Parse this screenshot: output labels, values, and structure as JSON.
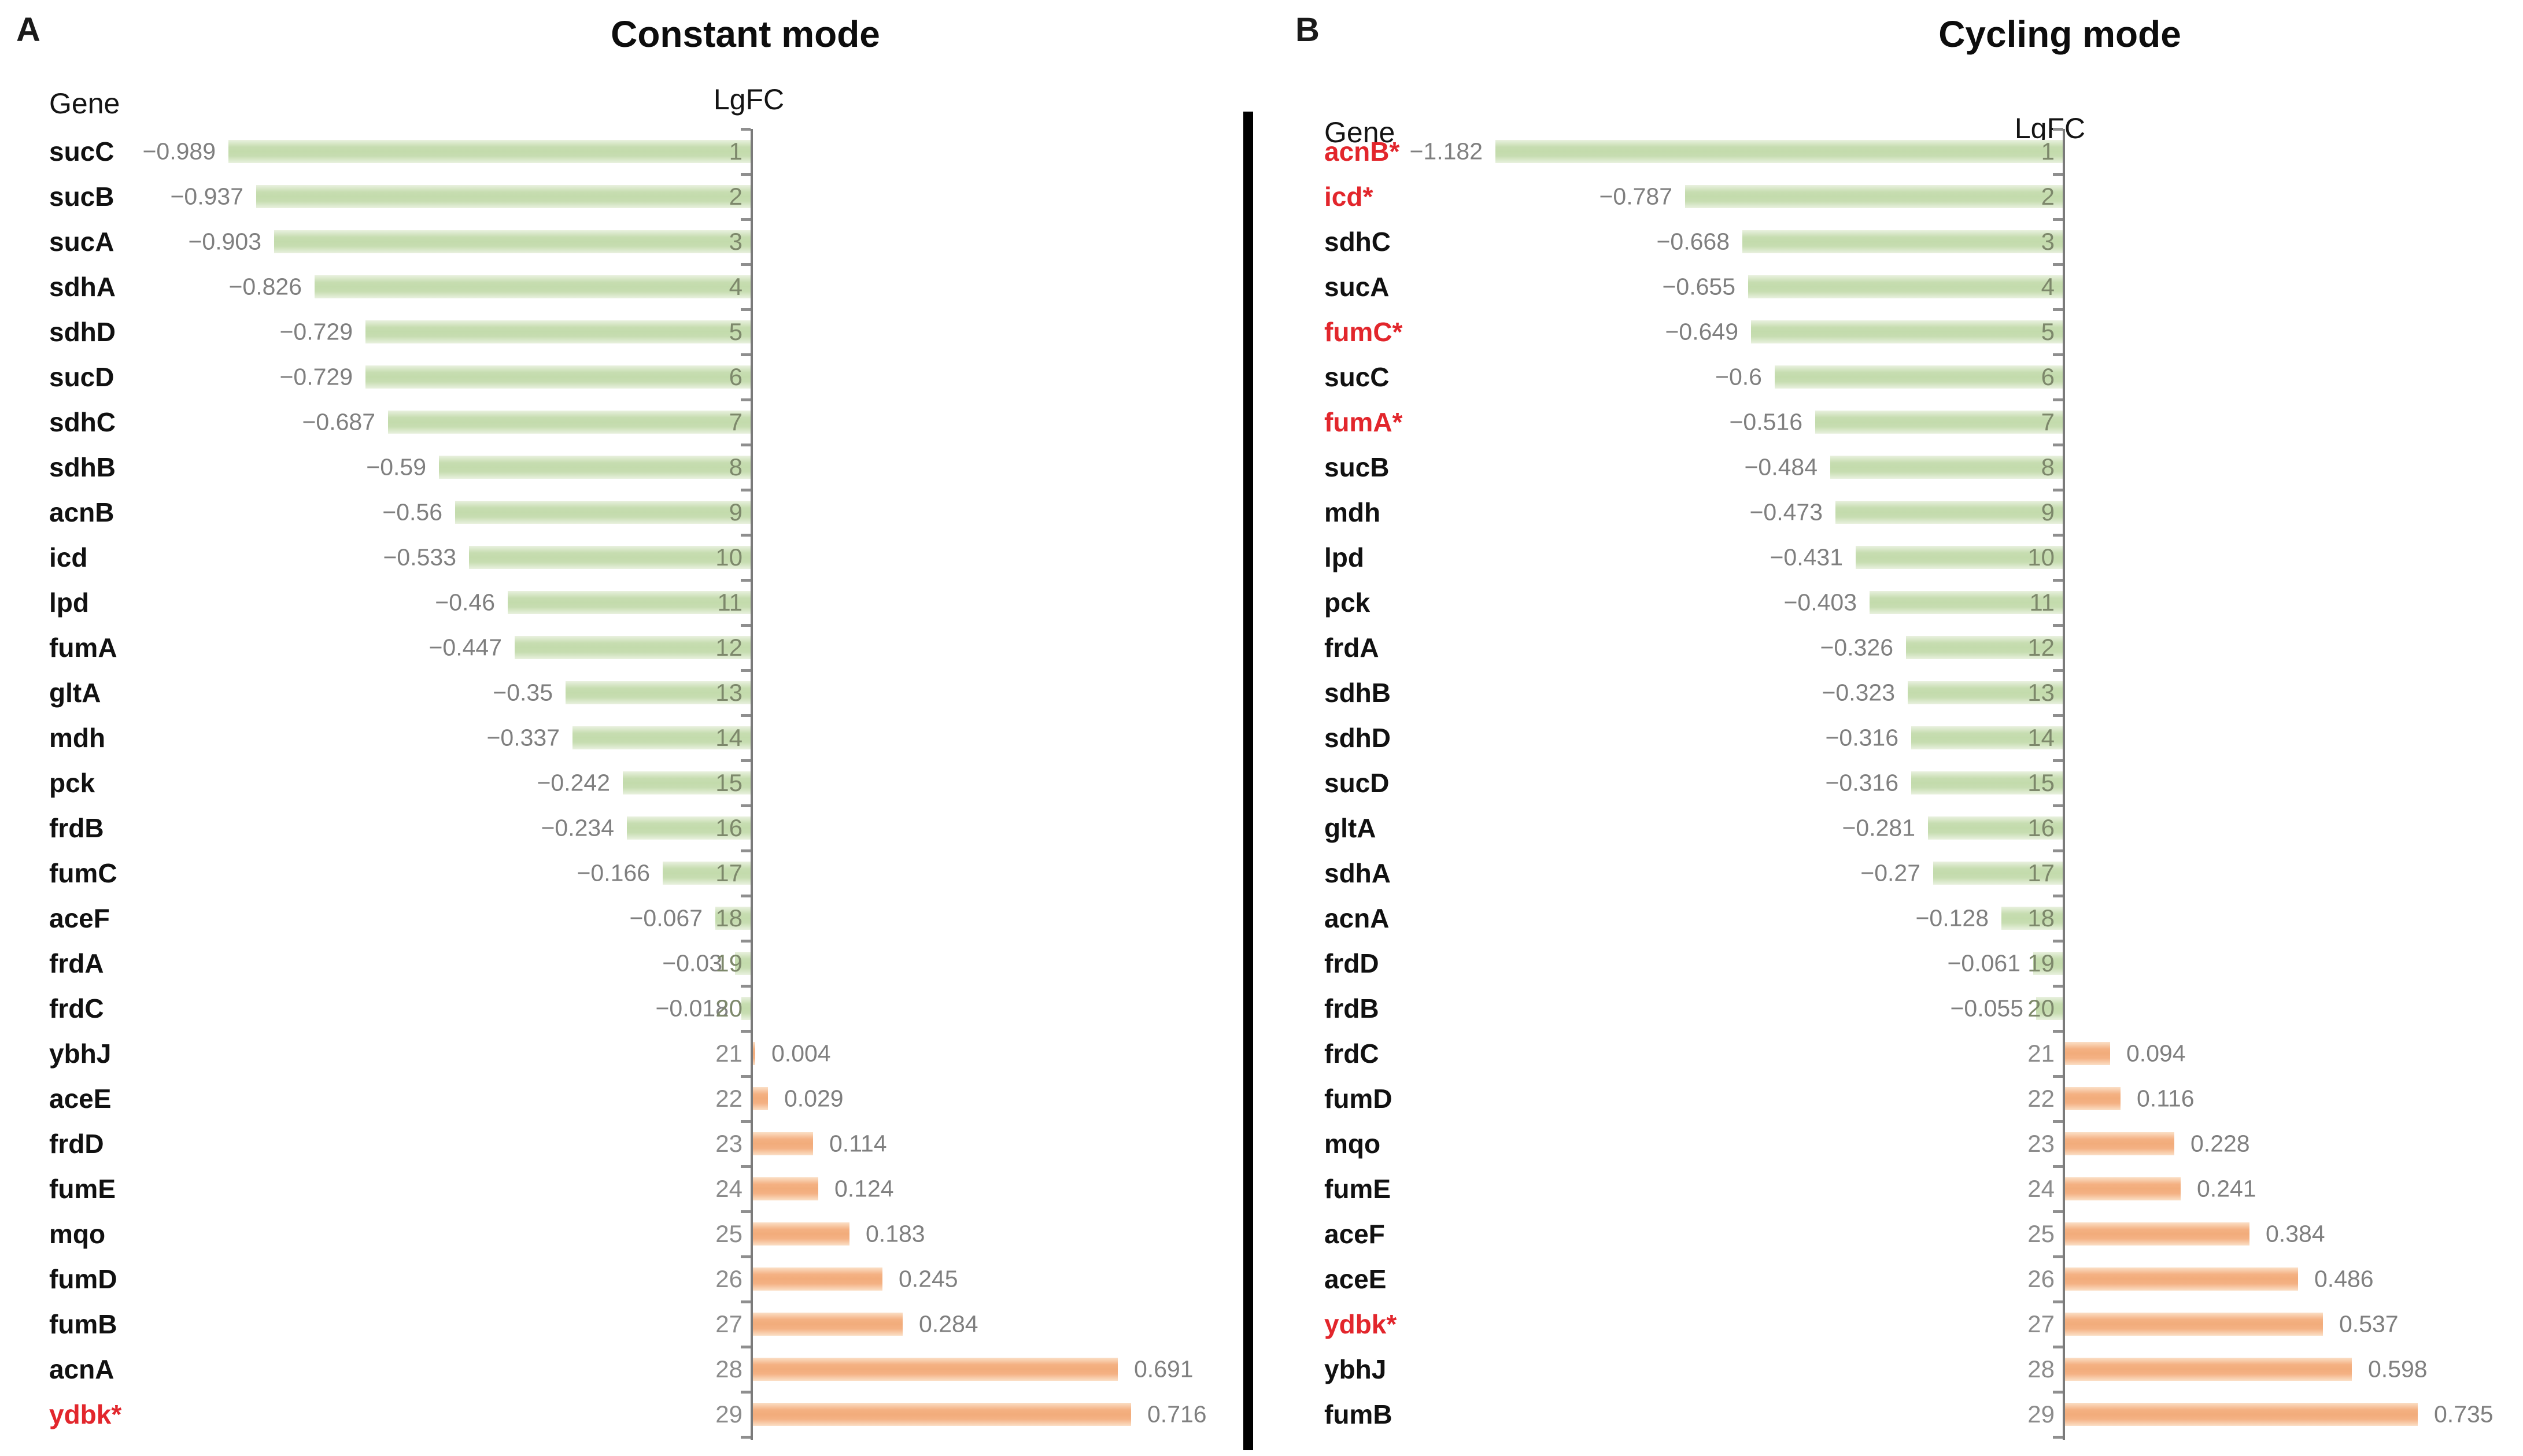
{
  "colors": {
    "negative_bar": "#c3dbac",
    "positive_bar": "#f4b183",
    "highlight_gene": "#e2262c",
    "value_text": "#7f7f7f",
    "axis": "#7a7a7a",
    "divider": "#000000"
  },
  "chart_data": [
    {
      "type": "bar",
      "orientation": "horizontal",
      "panel_label": "A",
      "title": "Constant mode",
      "gene_header": "Gene",
      "value_header": "LgFC",
      "xlabel": "LgFC",
      "ylabel": "Gene",
      "xlim": [
        -1.1,
        0.85
      ],
      "grid": false,
      "legend": "none",
      "negative_color": "#c3dbac",
      "positive_color": "#f4b183",
      "highlight_color": "#e2262c",
      "rows": [
        {
          "gene": "sucC",
          "lgfc": -0.989,
          "rank": 1,
          "highlight": false
        },
        {
          "gene": "sucB",
          "lgfc": -0.937,
          "rank": 2,
          "highlight": false
        },
        {
          "gene": "sucA",
          "lgfc": -0.903,
          "rank": 3,
          "highlight": false
        },
        {
          "gene": "sdhA",
          "lgfc": -0.826,
          "rank": 4,
          "highlight": false
        },
        {
          "gene": "sdhD",
          "lgfc": -0.729,
          "rank": 5,
          "highlight": false
        },
        {
          "gene": "sucD",
          "lgfc": -0.729,
          "rank": 6,
          "highlight": false
        },
        {
          "gene": "sdhC",
          "lgfc": -0.687,
          "rank": 7,
          "highlight": false
        },
        {
          "gene": "sdhB",
          "lgfc": -0.59,
          "rank": 8,
          "highlight": false
        },
        {
          "gene": "acnB",
          "lgfc": -0.56,
          "rank": 9,
          "highlight": false
        },
        {
          "gene": "icd",
          "lgfc": -0.533,
          "rank": 10,
          "highlight": false
        },
        {
          "gene": "lpd",
          "lgfc": -0.46,
          "rank": 11,
          "highlight": false
        },
        {
          "gene": "fumA",
          "lgfc": -0.447,
          "rank": 12,
          "highlight": false
        },
        {
          "gene": "gltA",
          "lgfc": -0.35,
          "rank": 13,
          "highlight": false
        },
        {
          "gene": "mdh",
          "lgfc": -0.337,
          "rank": 14,
          "highlight": false
        },
        {
          "gene": "pck",
          "lgfc": -0.242,
          "rank": 15,
          "highlight": false
        },
        {
          "gene": "frdB",
          "lgfc": -0.234,
          "rank": 16,
          "highlight": false
        },
        {
          "gene": "fumC",
          "lgfc": -0.166,
          "rank": 17,
          "highlight": false
        },
        {
          "gene": "aceF",
          "lgfc": -0.067,
          "rank": 18,
          "highlight": false
        },
        {
          "gene": "frdA",
          "lgfc": -0.03,
          "rank": 19,
          "highlight": false
        },
        {
          "gene": "frdC",
          "lgfc": -0.018,
          "rank": 20,
          "highlight": false
        },
        {
          "gene": "ybhJ",
          "lgfc": 0.004,
          "rank": 21,
          "highlight": false
        },
        {
          "gene": "aceE",
          "lgfc": 0.029,
          "rank": 22,
          "highlight": false
        },
        {
          "gene": "frdD",
          "lgfc": 0.114,
          "rank": 23,
          "highlight": false
        },
        {
          "gene": "fumE",
          "lgfc": 0.124,
          "rank": 24,
          "highlight": false
        },
        {
          "gene": "mqo",
          "lgfc": 0.183,
          "rank": 25,
          "highlight": false
        },
        {
          "gene": "fumD",
          "lgfc": 0.245,
          "rank": 26,
          "highlight": false
        },
        {
          "gene": "fumB",
          "lgfc": 0.284,
          "rank": 27,
          "highlight": false
        },
        {
          "gene": "acnA",
          "lgfc": 0.691,
          "rank": 28,
          "highlight": false
        },
        {
          "gene": "ydbk*",
          "lgfc": 0.716,
          "rank": 29,
          "highlight": true
        }
      ]
    },
    {
      "type": "bar",
      "orientation": "horizontal",
      "panel_label": "B",
      "title": "Cycling mode",
      "gene_header": "Gene",
      "value_header": "LgFC",
      "xlabel": "LgFC",
      "ylabel": "Gene",
      "xlim": [
        -1.3,
        0.95
      ],
      "grid": false,
      "legend": "none",
      "negative_color": "#c3dbac",
      "positive_color": "#f4b183",
      "highlight_color": "#e2262c",
      "rows": [
        {
          "gene": "acnB*",
          "lgfc": -1.182,
          "rank": 1,
          "highlight": true
        },
        {
          "gene": "icd*",
          "lgfc": -0.787,
          "rank": 2,
          "highlight": true
        },
        {
          "gene": "sdhC",
          "lgfc": -0.668,
          "rank": 3,
          "highlight": false
        },
        {
          "gene": "sucA",
          "lgfc": -0.655,
          "rank": 4,
          "highlight": false
        },
        {
          "gene": "fumC*",
          "lgfc": -0.649,
          "rank": 5,
          "highlight": true
        },
        {
          "gene": "sucC",
          "lgfc": -0.6,
          "rank": 6,
          "highlight": false
        },
        {
          "gene": "fumA*",
          "lgfc": -0.516,
          "rank": 7,
          "highlight": true
        },
        {
          "gene": "sucB",
          "lgfc": -0.484,
          "rank": 8,
          "highlight": false
        },
        {
          "gene": "mdh",
          "lgfc": -0.473,
          "rank": 9,
          "highlight": false
        },
        {
          "gene": "lpd",
          "lgfc": -0.431,
          "rank": 10,
          "highlight": false
        },
        {
          "gene": "pck",
          "lgfc": -0.403,
          "rank": 11,
          "highlight": false
        },
        {
          "gene": "frdA",
          "lgfc": -0.326,
          "rank": 12,
          "highlight": false
        },
        {
          "gene": "sdhB",
          "lgfc": -0.323,
          "rank": 13,
          "highlight": false
        },
        {
          "gene": "sdhD",
          "lgfc": -0.316,
          "rank": 14,
          "highlight": false
        },
        {
          "gene": "sucD",
          "lgfc": -0.316,
          "rank": 15,
          "highlight": false
        },
        {
          "gene": "gltA",
          "lgfc": -0.281,
          "rank": 16,
          "highlight": false
        },
        {
          "gene": "sdhA",
          "lgfc": -0.27,
          "rank": 17,
          "highlight": false
        },
        {
          "gene": "acnA",
          "lgfc": -0.128,
          "rank": 18,
          "highlight": false
        },
        {
          "gene": "frdD",
          "lgfc": -0.061,
          "rank": 19,
          "highlight": false
        },
        {
          "gene": "frdB",
          "lgfc": -0.055,
          "rank": 20,
          "highlight": false
        },
        {
          "gene": "frdC",
          "lgfc": 0.094,
          "rank": 21,
          "highlight": false
        },
        {
          "gene": "fumD",
          "lgfc": 0.116,
          "rank": 22,
          "highlight": false
        },
        {
          "gene": "mqo",
          "lgfc": 0.228,
          "rank": 23,
          "highlight": false
        },
        {
          "gene": "fumE",
          "lgfc": 0.241,
          "rank": 24,
          "highlight": false
        },
        {
          "gene": "aceF",
          "lgfc": 0.384,
          "rank": 25,
          "highlight": false
        },
        {
          "gene": "aceE",
          "lgfc": 0.486,
          "rank": 26,
          "highlight": false
        },
        {
          "gene": "ydbk*",
          "lgfc": 0.537,
          "rank": 27,
          "highlight": true
        },
        {
          "gene": "ybhJ",
          "lgfc": 0.598,
          "rank": 28,
          "highlight": false
        },
        {
          "gene": "fumB",
          "lgfc": 0.735,
          "rank": 29,
          "highlight": false
        }
      ]
    }
  ]
}
